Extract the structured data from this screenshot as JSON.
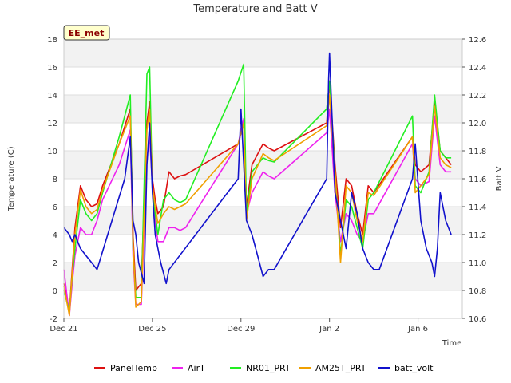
{
  "chart_data": {
    "type": "line",
    "title": "Temperature and Batt V",
    "xlabel": "Time",
    "ylabel_left": "Temperature (C)",
    "ylabel_right": "Batt V",
    "badge": "EE_met",
    "x_range": [
      "2023-12-21",
      "2024-01-08"
    ],
    "x_ticks": [
      {
        "date": "2023-12-21",
        "label": "Dec 21"
      },
      {
        "date": "2023-12-25",
        "label": "Dec 25"
      },
      {
        "date": "2023-12-29",
        "label": "Dec 29"
      },
      {
        "date": "2024-01-02",
        "label": "Jan 2"
      },
      {
        "date": "2024-01-06",
        "label": "Jan 6"
      }
    ],
    "ylim_left": [
      -2,
      18
    ],
    "y_ticks_left": [
      "-2",
      "0",
      "2",
      "4",
      "6",
      "8",
      "10",
      "12",
      "14",
      "16",
      "18"
    ],
    "ylim_right": [
      10.6,
      12.6
    ],
    "y_ticks_right": [
      "10.6",
      "10.8",
      "11.0",
      "11.2",
      "11.4",
      "11.6",
      "11.8",
      "12.0",
      "12.2",
      "12.4",
      "12.6"
    ],
    "grid": true,
    "legend_position": "bottom",
    "series": [
      {
        "name": "PanelTemp",
        "color": "#dd1111",
        "axis": "left",
        "x": [
          "2023-12-21 00:00",
          "2023-12-21 06:00",
          "2023-12-21 09:00",
          "2023-12-21 12:00",
          "2023-12-21 18:00",
          "2023-12-22 00:00",
          "2023-12-22 06:00",
          "2023-12-22 12:00",
          "2023-12-22 18:00",
          "2023-12-23 12:00",
          "2023-12-24 00:00",
          "2023-12-24 03:00",
          "2023-12-24 06:00",
          "2023-12-24 12:00",
          "2023-12-24 18:00",
          "2023-12-24 21:00",
          "2023-12-25 00:00",
          "2023-12-25 03:00",
          "2023-12-25 06:00",
          "2023-12-25 12:00",
          "2023-12-25 18:00",
          "2023-12-26 00:00",
          "2023-12-26 06:00",
          "2023-12-26 12:00",
          "2023-12-28 21:00",
          "2023-12-29 03:00",
          "2023-12-29 06:00",
          "2023-12-29 12:00",
          "2023-12-30 00:00",
          "2023-12-30 06:00",
          "2023-12-30 12:00",
          "2024-01-01 21:00",
          "2024-01-02 00:00",
          "2024-01-02 06:00",
          "2024-01-02 12:00",
          "2024-01-02 18:00",
          "2024-01-03 00:00",
          "2024-01-03 06:00",
          "2024-01-03 12:00",
          "2024-01-03 18:00",
          "2024-01-04 00:00",
          "2024-01-05 18:00",
          "2024-01-05 21:00",
          "2024-01-06 03:00",
          "2024-01-06 12:00",
          "2024-01-06 18:00",
          "2024-01-07 00:00",
          "2024-01-07 06:00",
          "2024-01-07 12:00"
        ],
        "y": [
          0.5,
          -1.5,
          1.5,
          4.5,
          7.5,
          6.5,
          6.0,
          6.2,
          7.5,
          10.5,
          13.0,
          4.0,
          0.0,
          0.5,
          12.0,
          13.5,
          8.0,
          6.5,
          5.5,
          6.0,
          8.5,
          8.0,
          8.2,
          8.3,
          10.5,
          12.0,
          6.0,
          9.0,
          10.5,
          10.2,
          10.0,
          12.0,
          15.0,
          9.0,
          4.5,
          8.0,
          7.5,
          5.5,
          4.0,
          7.5,
          7.0,
          11.0,
          9.0,
          8.5,
          9.0,
          13.5,
          10.0,
          9.5,
          9.0
        ]
      },
      {
        "name": "AirT",
        "color": "#ee22ee",
        "axis": "left",
        "x": [
          "2023-12-21 00:00",
          "2023-12-21 06:00",
          "2023-12-21 09:00",
          "2023-12-21 12:00",
          "2023-12-21 18:00",
          "2023-12-22 00:00",
          "2023-12-22 06:00",
          "2023-12-22 12:00",
          "2023-12-22 18:00",
          "2023-12-23 12:00",
          "2023-12-24 00:00",
          "2023-12-24 03:00",
          "2023-12-24 06:00",
          "2023-12-24 12:00",
          "2023-12-24 18:00",
          "2023-12-24 21:00",
          "2023-12-25 00:00",
          "2023-12-25 03:00",
          "2023-12-25 06:00",
          "2023-12-25 12:00",
          "2023-12-25 18:00",
          "2023-12-26 00:00",
          "2023-12-26 06:00",
          "2023-12-26 12:00",
          "2023-12-28 21:00",
          "2023-12-29 03:00",
          "2023-12-29 06:00",
          "2023-12-29 12:00",
          "2023-12-30 00:00",
          "2023-12-30 06:00",
          "2023-12-30 12:00",
          "2024-01-01 21:00",
          "2024-01-02 00:00",
          "2024-01-02 06:00",
          "2024-01-02 12:00",
          "2024-01-02 18:00",
          "2024-01-03 00:00",
          "2024-01-03 06:00",
          "2024-01-03 12:00",
          "2024-01-03 18:00",
          "2024-01-04 00:00",
          "2024-01-05 18:00",
          "2024-01-05 21:00",
          "2024-01-06 03:00",
          "2024-01-06 12:00",
          "2024-01-06 18:00",
          "2024-01-07 00:00",
          "2024-01-07 06:00",
          "2024-01-07 12:00"
        ],
        "y": [
          1.5,
          -1.8,
          0.5,
          2.5,
          4.5,
          4.0,
          4.0,
          5.0,
          6.5,
          9.0,
          11.5,
          2.5,
          -1.0,
          -1.0,
          9.5,
          11.0,
          7.5,
          5.0,
          3.5,
          3.5,
          4.5,
          4.5,
          4.3,
          4.5,
          10.5,
          12.3,
          5.5,
          7.0,
          8.5,
          8.2,
          8.0,
          11.3,
          13.0,
          7.0,
          3.5,
          5.5,
          5.0,
          4.0,
          3.5,
          5.5,
          5.5,
          10.5,
          8.0,
          7.5,
          7.8,
          12.5,
          9.0,
          8.5,
          8.5
        ]
      },
      {
        "name": "NR01_PRT",
        "color": "#22ee22",
        "axis": "left",
        "x": [
          "2023-12-21 00:00",
          "2023-12-21 06:00",
          "2023-12-21 09:00",
          "2023-12-21 12:00",
          "2023-12-21 18:00",
          "2023-12-22 00:00",
          "2023-12-22 06:00",
          "2023-12-22 12:00",
          "2023-12-22 18:00",
          "2023-12-23 12:00",
          "2023-12-24 00:00",
          "2023-12-24 03:00",
          "2023-12-24 06:00",
          "2023-12-24 12:00",
          "2023-12-24 18:00",
          "2023-12-24 21:00",
          "2023-12-25 00:00",
          "2023-12-25 03:00",
          "2023-12-25 06:00",
          "2023-12-25 12:00",
          "2023-12-25 18:00",
          "2023-12-26 00:00",
          "2023-12-26 06:00",
          "2023-12-26 12:00",
          "2023-12-28 21:00",
          "2023-12-29 03:00",
          "2023-12-29 06:00",
          "2023-12-29 12:00",
          "2023-12-30 00:00",
          "2023-12-30 06:00",
          "2023-12-30 12:00",
          "2024-01-01 21:00",
          "2024-01-02 00:00",
          "2024-01-02 06:00",
          "2024-01-02 12:00",
          "2024-01-02 18:00",
          "2024-01-03 00:00",
          "2024-01-03 06:00",
          "2024-01-03 12:00",
          "2024-01-03 18:00",
          "2024-01-04 00:00",
          "2024-01-05 18:00",
          "2024-01-05 21:00",
          "2024-01-06 03:00",
          "2024-01-06 12:00",
          "2024-01-06 18:00",
          "2024-01-07 00:00",
          "2024-01-07 06:00",
          "2024-01-07 12:00"
        ],
        "y": [
          0.0,
          -1.5,
          1.0,
          3.0,
          6.5,
          5.5,
          5.0,
          5.5,
          7.0,
          11.0,
          14.0,
          3.0,
          -0.5,
          -0.5,
          15.5,
          16.0,
          7.0,
          5.5,
          4.0,
          6.5,
          7.0,
          6.5,
          6.3,
          6.5,
          15.0,
          16.2,
          5.5,
          8.5,
          9.5,
          9.3,
          9.2,
          13.0,
          15.0,
          8.5,
          2.5,
          6.5,
          6.0,
          4.5,
          3.0,
          6.5,
          7.0,
          12.5,
          7.5,
          7.0,
          8.5,
          14.0,
          10.0,
          9.5,
          9.5
        ]
      },
      {
        "name": "AM25T_PRT",
        "color": "#f0a000",
        "axis": "left",
        "x": [
          "2023-12-21 00:00",
          "2023-12-21 06:00",
          "2023-12-21 09:00",
          "2023-12-21 12:00",
          "2023-12-21 18:00",
          "2023-12-22 00:00",
          "2023-12-22 06:00",
          "2023-12-22 12:00",
          "2023-12-22 18:00",
          "2023-12-23 12:00",
          "2023-12-24 00:00",
          "2023-12-24 03:00",
          "2023-12-24 06:00",
          "2023-12-24 12:00",
          "2023-12-24 18:00",
          "2023-12-24 21:00",
          "2023-12-25 00:00",
          "2023-12-25 03:00",
          "2023-12-25 06:00",
          "2023-12-25 12:00",
          "2023-12-25 18:00",
          "2023-12-26 00:00",
          "2023-12-26 06:00",
          "2023-12-26 12:00",
          "2023-12-28 21:00",
          "2023-12-29 03:00",
          "2023-12-29 06:00",
          "2023-12-29 12:00",
          "2023-12-30 00:00",
          "2023-12-30 06:00",
          "2023-12-30 12:00",
          "2024-01-01 21:00",
          "2024-01-02 00:00",
          "2024-01-02 06:00",
          "2024-01-02 12:00",
          "2024-01-02 18:00",
          "2024-01-03 00:00",
          "2024-01-03 06:00",
          "2024-01-03 12:00",
          "2024-01-03 18:00",
          "2024-01-04 00:00",
          "2024-01-05 18:00",
          "2024-01-05 21:00",
          "2024-01-06 03:00",
          "2024-01-06 12:00",
          "2024-01-06 18:00",
          "2024-01-07 00:00",
          "2024-01-07 06:00",
          "2024-01-07 12:00"
        ],
        "y": [
          0.3,
          -1.8,
          1.2,
          4.0,
          7.2,
          6.0,
          5.5,
          5.8,
          7.2,
          10.5,
          12.5,
          3.5,
          -1.2,
          -0.8,
          11.5,
          13.0,
          7.5,
          6.0,
          4.8,
          5.5,
          6.0,
          5.8,
          6.0,
          6.2,
          10.5,
          12.0,
          5.0,
          8.0,
          9.8,
          9.5,
          9.3,
          11.8,
          14.0,
          8.5,
          2.0,
          7.5,
          7.0,
          5.0,
          3.5,
          7.0,
          6.8,
          11.0,
          7.0,
          7.5,
          8.3,
          13.2,
          9.5,
          9.0,
          8.8
        ]
      },
      {
        "name": "batt_volt",
        "color": "#1111cc",
        "axis": "right",
        "x": [
          "2023-12-21 00:00",
          "2023-12-21 06:00",
          "2023-12-21 09:00",
          "2023-12-21 12:00",
          "2023-12-21 18:00",
          "2023-12-22 00:00",
          "2023-12-22 06:00",
          "2023-12-22 12:00",
          "2023-12-23 18:00",
          "2023-12-24 00:00",
          "2023-12-24 03:00",
          "2023-12-24 06:00",
          "2023-12-24 09:00",
          "2023-12-24 15:00",
          "2023-12-24 18:00",
          "2023-12-24 21:00",
          "2023-12-25 00:00",
          "2023-12-25 03:00",
          "2023-12-25 09:00",
          "2023-12-25 15:00",
          "2023-12-25 18:00",
          "2023-12-28 21:00",
          "2023-12-29 00:00",
          "2023-12-29 06:00",
          "2023-12-29 12:00",
          "2023-12-29 18:00",
          "2023-12-30 00:00",
          "2023-12-30 06:00",
          "2023-12-30 12:00",
          "2024-01-01 21:00",
          "2024-01-01 23:00",
          "2024-01-02 00:00",
          "2024-01-02 06:00",
          "2024-01-02 12:00",
          "2024-01-02 18:00",
          "2024-01-03 00:00",
          "2024-01-03 06:00",
          "2024-01-03 12:00",
          "2024-01-03 18:00",
          "2024-01-04 00:00",
          "2024-01-04 06:00",
          "2024-01-05 18:00",
          "2024-01-05 21:00",
          "2024-01-06 03:00",
          "2024-01-06 09:00",
          "2024-01-06 15:00",
          "2024-01-06 18:00",
          "2024-01-06 21:00",
          "2024-01-07 00:00",
          "2024-01-07 06:00",
          "2024-01-07 12:00"
        ],
        "y": [
          11.25,
          11.2,
          11.15,
          11.2,
          11.1,
          11.05,
          11.0,
          10.95,
          11.6,
          11.9,
          11.3,
          11.2,
          11.0,
          10.85,
          11.7,
          12.0,
          11.5,
          11.2,
          11.0,
          10.85,
          10.95,
          11.6,
          12.1,
          11.3,
          11.2,
          11.05,
          10.9,
          10.95,
          10.95,
          11.6,
          12.3,
          12.5,
          11.5,
          11.3,
          11.1,
          11.5,
          11.35,
          11.1,
          11.0,
          10.95,
          10.95,
          11.6,
          11.85,
          11.3,
          11.1,
          11.0,
          10.9,
          11.1,
          11.5,
          11.3,
          11.2
        ]
      }
    ]
  }
}
